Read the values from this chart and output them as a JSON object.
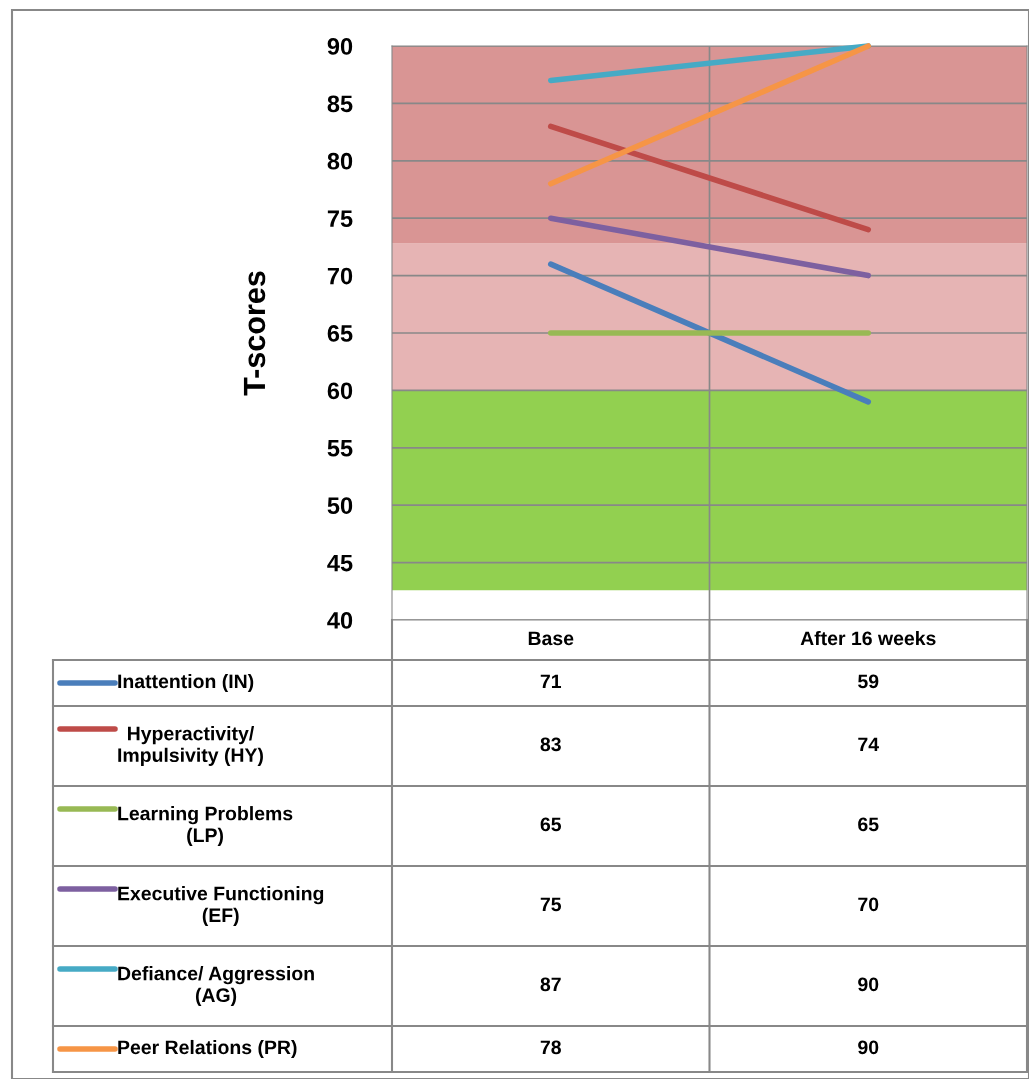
{
  "chart_data": {
    "type": "line",
    "ylabel": "T-scores",
    "categories": [
      "Base",
      "After 16 weeks"
    ],
    "series": [
      {
        "name": "Inattention (IN)",
        "color": "#4a7ebb",
        "values": [
          71,
          59
        ]
      },
      {
        "name": "Hyperactivity/\nImpulsivity (HY)",
        "color": "#be4b48",
        "values": [
          83,
          74
        ]
      },
      {
        "name": "Learning Problems\n(LP)",
        "color": "#98b954",
        "values": [
          65,
          65
        ]
      },
      {
        "name": "Executive Functioning\n(EF)",
        "color": "#7d60a0",
        "values": [
          75,
          70
        ]
      },
      {
        "name": "Defiance/ Aggression\n(AG)",
        "color": "#46aac5",
        "values": [
          87,
          90
        ]
      },
      {
        "name": "Peer Relations (PR)",
        "color": "#f69546",
        "values": [
          78,
          90
        ]
      }
    ],
    "bands": [
      {
        "axis": "y",
        "from": 42.6,
        "to": 60,
        "color": "#92d050"
      },
      {
        "axis": "y",
        "from": 60,
        "to": 72.8,
        "color": "#e6b4b4"
      },
      {
        "axis": "y",
        "from": 72.8,
        "to": 90,
        "color": "#d99594"
      }
    ],
    "ylim": [
      40,
      90
    ],
    "yticks": [
      40,
      45,
      50,
      55,
      60,
      65,
      70,
      75,
      80,
      85,
      90
    ],
    "grid": true,
    "legend": "bottom",
    "data_labels": true,
    "marker": "none",
    "line_style": "solid"
  }
}
